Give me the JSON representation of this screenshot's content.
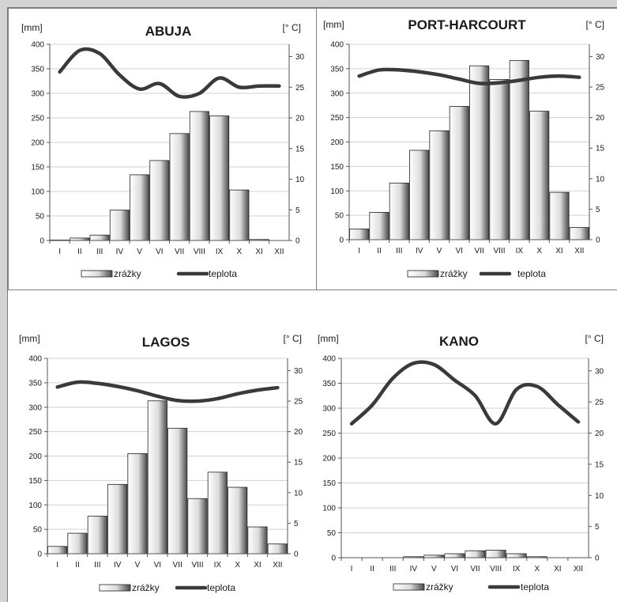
{
  "units": {
    "left": "[mm]",
    "right": "[° C]"
  },
  "legend": {
    "precip": "zrážky",
    "temp": "teplota"
  },
  "months": [
    "I",
    "II",
    "III",
    "IV",
    "V",
    "VI",
    "VII",
    "VIII",
    "IX",
    "X",
    "XI",
    "XII"
  ],
  "colors": {
    "bar_light": "#ffffff",
    "bar_dark": "#4a4a4a",
    "line": "#3a3a3a",
    "grid": "#d0d0d0",
    "frame": "#7f7f7f"
  },
  "chart_data": [
    {
      "type": "bar+line",
      "title": "ABUJA",
      "ylabel": "[mm]",
      "y2label": "[° C]",
      "ylim": [
        0,
        400
      ],
      "yticks": [
        0,
        50,
        100,
        150,
        200,
        250,
        300,
        350,
        400
      ],
      "y2lim": [
        0,
        32
      ],
      "y2ticks": [
        0,
        5,
        10,
        15,
        20,
        25,
        30
      ],
      "categories": [
        "I",
        "II",
        "III",
        "IV",
        "V",
        "VI",
        "VII",
        "VIII",
        "IX",
        "X",
        "XI",
        "XII"
      ],
      "series": [
        {
          "name": "zrážky",
          "kind": "bar",
          "axis": "left",
          "values": [
            1,
            5,
            11,
            62,
            134,
            163,
            218,
            263,
            254,
            103,
            2,
            0
          ]
        },
        {
          "name": "teplota",
          "kind": "line",
          "axis": "right",
          "values": [
            27.5,
            31,
            30.5,
            27,
            24.7,
            25.6,
            23.5,
            24,
            26.5,
            25,
            25.2,
            25.2
          ]
        }
      ]
    },
    {
      "type": "bar+line",
      "title": "PORT-HARCOURT",
      "ylabel": "[mm]",
      "y2label": "[° C]",
      "ylim": [
        0,
        400
      ],
      "yticks": [
        0,
        50,
        100,
        150,
        200,
        250,
        300,
        350,
        400
      ],
      "y2lim": [
        0,
        32
      ],
      "y2ticks": [
        0,
        5,
        10,
        15,
        20,
        25,
        30
      ],
      "categories": [
        "I",
        "II",
        "III",
        "IV",
        "V",
        "VI",
        "VII",
        "VIII",
        "IX",
        "X",
        "XI",
        "XII"
      ],
      "series": [
        {
          "name": "zrážky",
          "kind": "bar",
          "axis": "left",
          "values": [
            22,
            56,
            116,
            183,
            223,
            273,
            356,
            328,
            367,
            263,
            97,
            25
          ]
        },
        {
          "name": "teplota",
          "kind": "line",
          "axis": "right",
          "values": [
            26.8,
            27.8,
            27.8,
            27.5,
            27,
            26.3,
            25.6,
            25.7,
            26.1,
            26.6,
            26.8,
            26.6
          ]
        }
      ]
    },
    {
      "type": "bar+line",
      "title": "LAGOS",
      "ylabel": "[mm]",
      "y2label": "[° C]",
      "ylim": [
        0,
        400
      ],
      "yticks": [
        0,
        50,
        100,
        150,
        200,
        250,
        300,
        350,
        400
      ],
      "y2lim": [
        0,
        32
      ],
      "y2ticks": [
        0,
        5,
        10,
        15,
        20,
        25,
        30
      ],
      "categories": [
        "I",
        "II",
        "III",
        "IV",
        "V",
        "VI",
        "VII",
        "VIII",
        "IX",
        "X",
        "XI",
        "XII"
      ],
      "series": [
        {
          "name": "zrážky",
          "kind": "bar",
          "axis": "left",
          "values": [
            15,
            42,
            77,
            142,
            205,
            313,
            257,
            113,
            167,
            136,
            55,
            20
          ]
        },
        {
          "name": "teplota",
          "kind": "line",
          "axis": "right",
          "values": [
            27.3,
            28.1,
            27.9,
            27.4,
            26.7,
            25.8,
            25.1,
            25,
            25.4,
            26.2,
            26.8,
            27.2
          ]
        }
      ]
    },
    {
      "type": "bar+line",
      "title": "KANO",
      "ylabel": "[mm]",
      "y2label": "[° C]",
      "ylim": [
        0,
        400
      ],
      "yticks": [
        0,
        50,
        100,
        150,
        200,
        250,
        300,
        350,
        400
      ],
      "y2lim": [
        0,
        32
      ],
      "y2ticks": [
        0,
        5,
        10,
        15,
        20,
        25,
        30
      ],
      "categories": [
        "I",
        "II",
        "III",
        "IV",
        "V",
        "VI",
        "VII",
        "VIII",
        "IX",
        "X",
        "XI",
        "XII"
      ],
      "series": [
        {
          "name": "zrážky",
          "kind": "bar",
          "axis": "left",
          "values": [
            0,
            0,
            0,
            2,
            5,
            8,
            14,
            15,
            8,
            2,
            0,
            0
          ]
        },
        {
          "name": "teplota",
          "kind": "line",
          "axis": "right",
          "values": [
            21.5,
            24.5,
            28.8,
            31.2,
            31,
            28.5,
            26,
            21.5,
            27,
            27.5,
            24.6,
            21.8
          ]
        }
      ]
    }
  ]
}
